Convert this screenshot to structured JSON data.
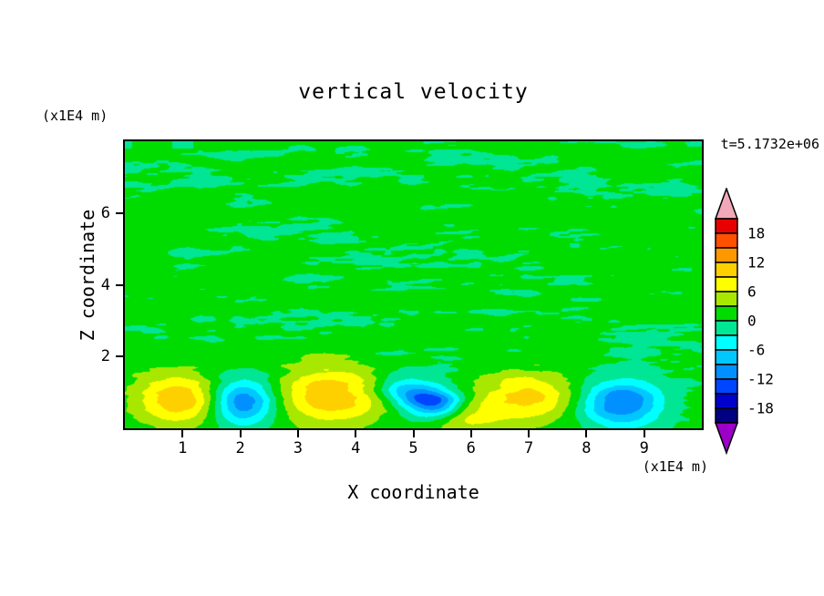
{
  "chart_data": {
    "type": "contour",
    "title": "vertical velocity",
    "time_label": "t=5.1732e+06",
    "xlabel": "X coordinate",
    "ylabel": "Z coordinate",
    "x_unit_label": "(x1E4 m)",
    "y_unit_label": "(x1E4 m)",
    "x_range": [
      0,
      10
    ],
    "z_range": [
      0,
      8
    ],
    "x_ticks": [
      1,
      2,
      3,
      4,
      5,
      6,
      7,
      8,
      9
    ],
    "y_ticks": [
      2,
      4,
      6
    ],
    "contour_interval": 3,
    "levels_range": [
      -21,
      21
    ],
    "colorbar": {
      "labels": [
        "18",
        "12",
        "6",
        "0",
        "-6",
        "-12",
        "-18"
      ],
      "segment_colors_bottom_to_top": [
        "#000082",
        "#0000cd",
        "#0045ff",
        "#0090ff",
        "#00c8ff",
        "#00ffff",
        "#00e695",
        "#00dc00",
        "#a8e800",
        "#ffff00",
        "#ffd000",
        "#ff9800",
        "#ff5000",
        "#e80000"
      ],
      "over_color": "#f2a8b8",
      "under_color": "#9c00c8"
    },
    "field_description": "mostly near-zero vertical velocity with fine green/turquoise turbulent streaks aloft and alternating convective updraft (yellow, w up to ~+12) and downdraft (blue, w down to ~-13) cells near the surface",
    "background_value": 0.6,
    "noise_amplitude": 2.3,
    "cells": [
      {
        "x": 0.95,
        "z": 0.8,
        "amplitude": 11,
        "sx": 0.52,
        "sz": 0.5
      },
      {
        "x": 3.55,
        "z": 0.9,
        "amplitude": 11,
        "sx": 0.68,
        "sz": 0.6
      },
      {
        "x": 6.95,
        "z": 0.85,
        "amplitude": 9.5,
        "sx": 0.6,
        "sz": 0.5
      },
      {
        "x": 5.85,
        "z": 0.25,
        "amplitude": 6,
        "sx": 0.45,
        "sz": 0.35
      },
      {
        "x": 2.05,
        "z": 0.75,
        "amplitude": -13,
        "sx": 0.4,
        "sz": 0.45
      },
      {
        "x": 5.15,
        "z": 0.8,
        "amplitude": -10,
        "sx": 0.32,
        "sz": 0.3
      },
      {
        "x": 5.5,
        "z": 0.65,
        "amplitude": -9,
        "sx": 0.3,
        "sz": 0.3
      },
      {
        "x": 8.6,
        "z": 0.7,
        "amplitude": -13,
        "sx": 0.48,
        "sz": 0.45
      },
      {
        "x": 4.75,
        "z": 1.15,
        "amplitude": -6,
        "sx": 0.32,
        "sz": 0.28
      }
    ]
  }
}
